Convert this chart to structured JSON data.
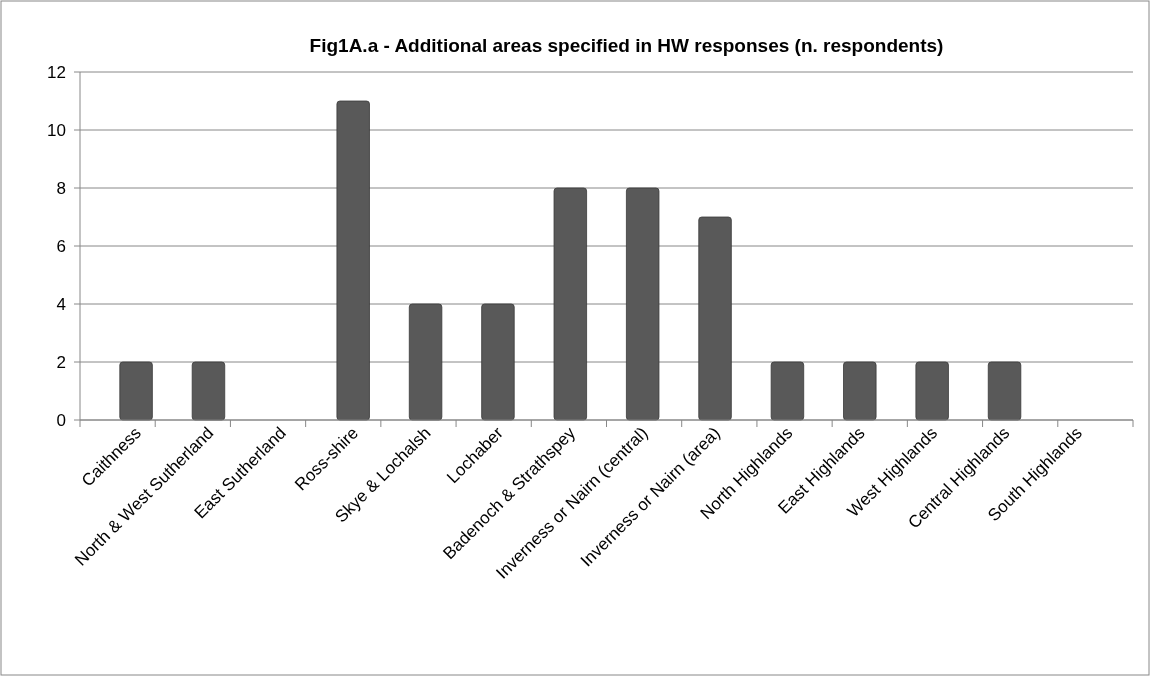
{
  "chart_data": {
    "type": "bar",
    "title": "Fig1A.a - Additional areas specified in HW responses (n. respondents)",
    "categories": [
      "Caithness",
      "North & West Sutherland",
      "East Sutherland",
      "Ross-shire",
      "Skye & Lochalsh",
      "Lochaber",
      "Badenoch & Strathspey",
      "Inverness or Nairn (central)",
      "Inverness or Nairn (area)",
      "North Highlands",
      "East Highlands",
      "West Highlands",
      "Central Highlands",
      "South Highlands"
    ],
    "values": [
      2,
      2,
      0,
      11,
      4,
      4,
      8,
      8,
      7,
      2,
      2,
      2,
      2,
      0
    ],
    "color": "#595959",
    "ylim": [
      0,
      12
    ],
    "yticks": [
      0,
      2,
      4,
      6,
      8,
      10,
      12
    ],
    "grid": "y"
  }
}
